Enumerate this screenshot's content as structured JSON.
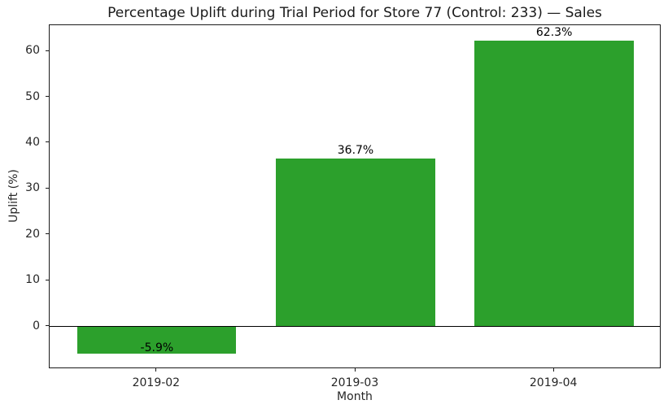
{
  "chart_data": {
    "type": "bar",
    "title": "Percentage Uplift during Trial Period for Store 77 (Control: 233) — Sales",
    "xlabel": "Month",
    "ylabel": "Uplift (%)",
    "categories": [
      "2019-02",
      "2019-03",
      "2019-04"
    ],
    "values": [
      -5.9,
      36.7,
      62.3
    ],
    "bar_labels": [
      "-5.9%",
      "36.7%",
      "62.3%"
    ],
    "bar_color": "#2ca02c",
    "y_ticks": [
      0,
      10,
      20,
      30,
      40,
      50,
      60
    ],
    "ylim": [
      -9.31,
      65.71
    ],
    "bar_width_fraction": 0.8,
    "grid": false,
    "legend": "none",
    "zero_line": true,
    "background_color": "#ffffff"
  }
}
